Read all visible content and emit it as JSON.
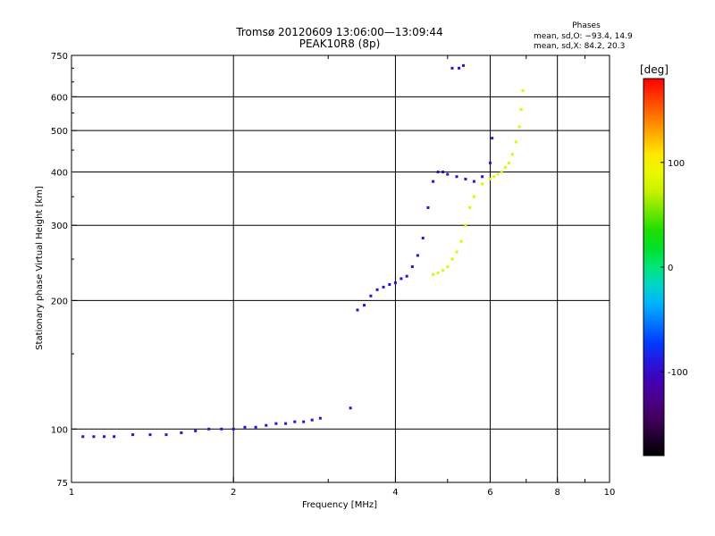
{
  "chart_data": {
    "type": "scatter",
    "title": "Tromsø 20120609 13:06:00—13:09:44",
    "subtitle": "PEAK10R8 (8p)",
    "xlabel": "Frequency [MHz]",
    "ylabel": "Stationary phase Virtual Height [km]",
    "xscale": "log",
    "yscale": "log",
    "xlim": [
      1,
      10
    ],
    "ylim": [
      75,
      750
    ],
    "xticks": [
      {
        "value": 1,
        "label": "1"
      },
      {
        "value": 2,
        "label": "2"
      },
      {
        "value": 4,
        "label": "4"
      },
      {
        "value": 6,
        "label": "6"
      },
      {
        "value": 8,
        "label": "8"
      },
      {
        "value": 10,
        "label": "10"
      }
    ],
    "yticks": [
      {
        "value": 75,
        "label": "75"
      },
      {
        "value": 100,
        "label": "100"
      },
      {
        "value": 200,
        "label": "200"
      },
      {
        "value": 300,
        "label": "300"
      },
      {
        "value": 400,
        "label": "400"
      },
      {
        "value": 500,
        "label": "500"
      },
      {
        "value": 600,
        "label": "600"
      },
      {
        "value": 750,
        "label": "750"
      }
    ],
    "grid_x": [
      2,
      4,
      6,
      8
    ],
    "grid_y": [
      100,
      200,
      300,
      400,
      500,
      600
    ],
    "stats": {
      "heading": "Phases",
      "line_o": "mean, sd,O: −93.4, 14.9",
      "line_x": "mean, sd,X: 84.2, 20.3"
    },
    "colorbar": {
      "label": "[deg]",
      "min": -180,
      "max": 180,
      "ticks": [
        {
          "value": 100,
          "label": "100"
        },
        {
          "value": 0,
          "label": "0"
        },
        {
          "value": -100,
          "label": "-100"
        }
      ]
    },
    "series": [
      {
        "name": "O-mode",
        "phase_mean": -93.4,
        "phase_sd": 14.9,
        "points": [
          [
            1.05,
            96
          ],
          [
            1.1,
            96
          ],
          [
            1.15,
            96
          ],
          [
            1.2,
            96
          ],
          [
            1.3,
            97
          ],
          [
            1.4,
            97
          ],
          [
            1.5,
            97
          ],
          [
            1.6,
            98
          ],
          [
            1.7,
            99
          ],
          [
            1.8,
            100
          ],
          [
            1.9,
            100
          ],
          [
            2.0,
            100
          ],
          [
            2.1,
            101
          ],
          [
            2.2,
            101
          ],
          [
            2.3,
            102
          ],
          [
            2.4,
            103
          ],
          [
            2.5,
            103
          ],
          [
            2.6,
            104
          ],
          [
            2.7,
            104
          ],
          [
            2.8,
            105
          ],
          [
            2.9,
            106
          ],
          [
            3.3,
            112
          ],
          [
            3.4,
            190
          ],
          [
            3.5,
            195
          ],
          [
            3.6,
            205
          ],
          [
            3.7,
            212
          ],
          [
            3.8,
            215
          ],
          [
            3.9,
            218
          ],
          [
            4.0,
            220
          ],
          [
            4.1,
            225
          ],
          [
            4.2,
            228
          ],
          [
            4.3,
            240
          ],
          [
            4.4,
            255
          ],
          [
            4.5,
            280
          ],
          [
            4.6,
            330
          ],
          [
            4.7,
            380
          ],
          [
            4.8,
            400
          ],
          [
            4.9,
            400
          ],
          [
            5.0,
            395
          ],
          [
            5.2,
            390
          ],
          [
            5.4,
            385
          ],
          [
            5.6,
            380
          ],
          [
            5.8,
            390
          ],
          [
            6.0,
            420
          ],
          [
            6.05,
            480
          ],
          [
            5.1,
            700
          ],
          [
            5.25,
            700
          ],
          [
            5.35,
            710
          ]
        ]
      },
      {
        "name": "X-mode",
        "phase_mean": 84.2,
        "phase_sd": 20.3,
        "points": [
          [
            4.7,
            230
          ],
          [
            4.8,
            232
          ],
          [
            4.9,
            235
          ],
          [
            5.0,
            240
          ],
          [
            5.1,
            250
          ],
          [
            5.2,
            260
          ],
          [
            5.3,
            275
          ],
          [
            5.4,
            300
          ],
          [
            5.5,
            330
          ],
          [
            5.6,
            350
          ],
          [
            5.8,
            375
          ],
          [
            6.0,
            385
          ],
          [
            6.1,
            390
          ],
          [
            6.2,
            395
          ],
          [
            6.3,
            400
          ],
          [
            6.4,
            410
          ],
          [
            6.5,
            420
          ],
          [
            6.6,
            440
          ],
          [
            6.7,
            470
          ],
          [
            6.8,
            510
          ],
          [
            6.85,
            560
          ],
          [
            6.9,
            620
          ]
        ]
      }
    ]
  }
}
